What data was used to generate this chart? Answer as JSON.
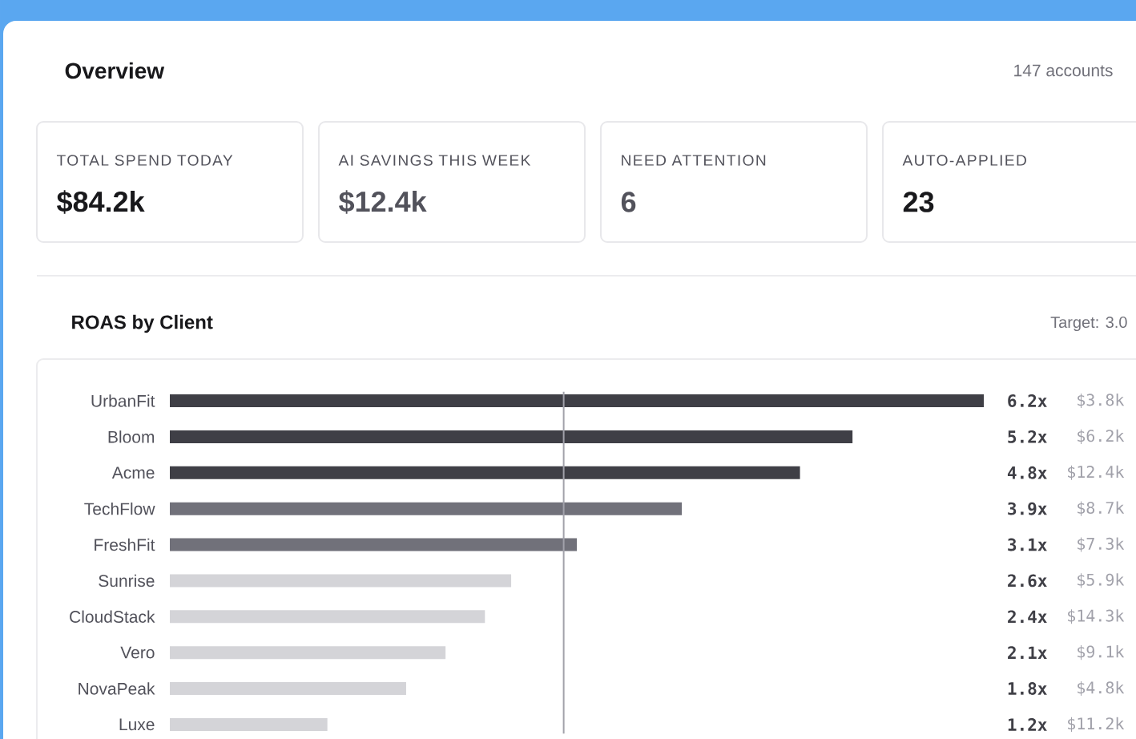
{
  "chart_data": [
    {
      "type": "other",
      "title": "Overview",
      "annotations": [
        "147 accounts",
        "TOTAL SPEND TODAY",
        "$84.2k",
        "AI SAVINGS THIS WEEK",
        "$12.4k",
        "NEED ATTENTION",
        "6",
        "AUTO-APPLIED",
        "23"
      ]
    },
    {
      "type": "bar",
      "orientation": "horizontal",
      "title": "ROAS by Client",
      "categories": [
        "UrbanFit",
        "Bloom",
        "Acme",
        "TechFlow",
        "FreshFit",
        "Sunrise",
        "CloudStack",
        "Vero",
        "NovaPeak",
        "Luxe"
      ],
      "values": [
        6.2,
        5.2,
        4.8,
        3.9,
        3.1,
        2.6,
        2.4,
        2.1,
        1.8,
        1.2
      ],
      "colors": [
        "#3f3f46",
        "#3f3f46",
        "#3f3f46",
        "#71717a",
        "#71717a",
        "#d4d4d8",
        "#d4d4d8",
        "#d4d4d8",
        "#d4d4d8",
        "#d4d4d8"
      ],
      "value_labels": [
        "6.2x",
        "5.2x",
        "4.8x",
        "3.9x",
        "3.1x",
        "2.6x",
        "2.4x",
        "2.1x",
        "1.8x",
        "1.2x"
      ],
      "xlim": [
        0,
        6.2
      ],
      "tick_labels": "y",
      "ref_lines": [
        {
          "axis": "x",
          "value": 3.0,
          "color": "#a1a1aa"
        }
      ],
      "annotations": [
        "Target: 3.0",
        "$3.8k",
        "$6.2k",
        "$12.4k",
        "$8.7k",
        "$7.3k",
        "$5.9k",
        "$14.3k",
        "$9.1k",
        "$4.8k",
        "$11.2k"
      ]
    }
  ]
}
